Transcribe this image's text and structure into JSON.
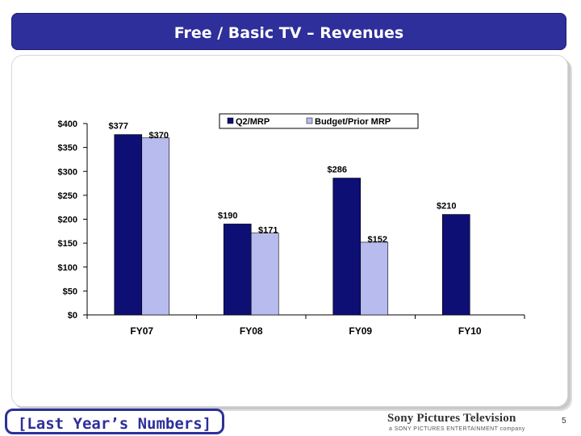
{
  "header": {
    "title": "Free / Basic TV – Revenues"
  },
  "footer": {
    "tag": "[Last Year’s Numbers]",
    "logo_name": "Sony Pictures Television",
    "logo_sub": "a SONY PICTURES ENTERTAINMENT company",
    "page_number": "5"
  },
  "colors": {
    "title_bar": "#2e2f9a",
    "series_q2": "#0d0f74",
    "series_budget": "#b8bbee"
  },
  "chart_data": {
    "type": "bar",
    "title": "",
    "xlabel": "",
    "ylabel": "",
    "categories": [
      "FY07",
      "FY08",
      "FY09",
      "FY10"
    ],
    "ylim": [
      0,
      400
    ],
    "yticks": [
      0,
      50,
      100,
      150,
      200,
      250,
      300,
      350,
      400
    ],
    "ytick_labels": [
      "$0",
      "$50",
      "$100",
      "$150",
      "$200",
      "$250",
      "$300",
      "$350",
      "$400"
    ],
    "grid": false,
    "legend_position": "top-right",
    "series": [
      {
        "name": "Q2/MRP",
        "values": [
          377,
          190,
          286,
          210
        ],
        "labels": [
          "$377",
          "$190",
          "$286",
          "$210"
        ]
      },
      {
        "name": "Budget/Prior MRP",
        "values": [
          370,
          171,
          152,
          null
        ],
        "labels": [
          "$370",
          "$171",
          "$152",
          ""
        ]
      }
    ]
  }
}
